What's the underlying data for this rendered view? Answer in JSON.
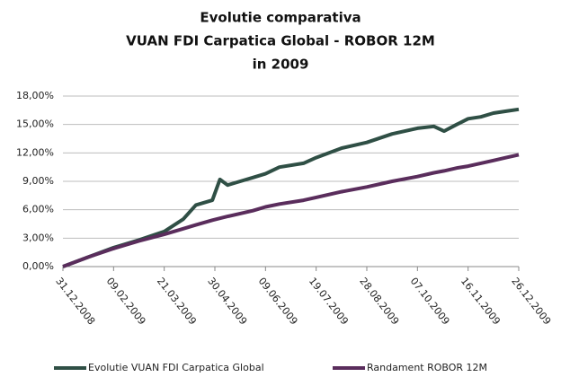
{
  "chart_data": {
    "type": "line",
    "title": [
      "Evolutie comparativa",
      "VUAN FDI Carpatica Global - ROBOR 12M",
      "in 2009"
    ],
    "x": [
      "31.12.2008",
      "20.01.2009",
      "09.02.2009",
      "01.03.2009",
      "21.03.2009",
      "05.04.2009",
      "15.04.2009",
      "28.04.2009",
      "04.05.2009",
      "10.05.2009",
      "20.05.2009",
      "30.05.2009",
      "09.06.2009",
      "20.06.2009",
      "09.07.2009",
      "19.07.2009",
      "08.08.2009",
      "28.08.2009",
      "17.09.2009",
      "07.10.2009",
      "20.10.2009",
      "28.10.2009",
      "07.11.2009",
      "16.11.2009",
      "26.11.2009",
      "06.12.2009",
      "16.12.2009",
      "26.12.2009"
    ],
    "series": [
      {
        "name": "Evolutie VUAN FDI Carpatica Global",
        "color": "#2f4f45",
        "values": [
          0,
          1.0,
          2.0,
          2.8,
          3.7,
          5.0,
          6.5,
          7.0,
          9.2,
          8.6,
          9.0,
          9.4,
          9.8,
          10.5,
          10.9,
          11.5,
          12.5,
          13.1,
          14.0,
          14.6,
          14.8,
          14.3,
          15.0,
          15.6,
          15.8,
          16.2,
          16.4,
          16.6
        ]
      },
      {
        "name": "Randament ROBOR 12M",
        "color": "#5a2d5c",
        "values": [
          0,
          1.0,
          1.9,
          2.7,
          3.4,
          4.0,
          4.4,
          4.9,
          5.1,
          5.3,
          5.6,
          5.9,
          6.3,
          6.6,
          7.0,
          7.3,
          7.9,
          8.4,
          9.0,
          9.5,
          9.9,
          10.1,
          10.4,
          10.6,
          10.9,
          11.2,
          11.5,
          11.8
        ]
      }
    ],
    "xlim": [
      "31.12.2008",
      "26.12.2009"
    ],
    "xticks": [
      "31.12.2008",
      "09.02.2009",
      "21.03.2009",
      "30.04.2009",
      "09.06.2009",
      "19.07.2009",
      "28.08.2009",
      "07.10.2009",
      "16.11.2009",
      "26.12.2009"
    ],
    "ylim": [
      0,
      18
    ],
    "yticks": [
      {
        "value": 0,
        "label": "0,00%"
      },
      {
        "value": 3,
        "label": "3,00%"
      },
      {
        "value": 6,
        "label": "6,00%"
      },
      {
        "value": 9,
        "label": "9,00%"
      },
      {
        "value": 12,
        "label": "12,00%"
      },
      {
        "value": 15,
        "label": "15,00%"
      },
      {
        "value": 18,
        "label": "18,00%"
      }
    ],
    "grid": true,
    "legend": "bottom"
  }
}
